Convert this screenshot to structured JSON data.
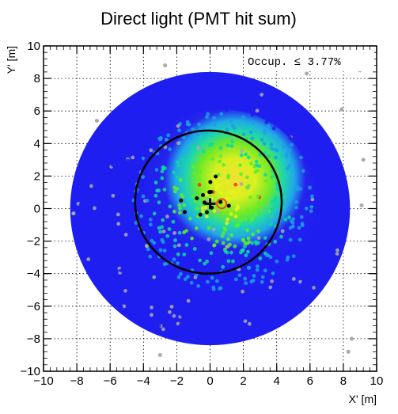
{
  "chart_data": {
    "type": "scatter",
    "title": "Direct light (PMT hit sum)",
    "xlabel": "X' [m]",
    "ylabel": "Y' [m]",
    "xlim": [
      -10,
      10
    ],
    "ylim": [
      -10,
      10
    ],
    "xticks": [
      -10,
      -8,
      -6,
      -4,
      -2,
      0,
      2,
      4,
      6,
      8,
      10
    ],
    "yticks": [
      -10,
      -8,
      -6,
      -4,
      -2,
      0,
      2,
      4,
      6,
      8,
      10
    ],
    "xtick_labels": [
      "−10",
      "−8",
      "−6",
      "−4",
      "−2",
      "0",
      "2",
      "4",
      "6",
      "8",
      "10"
    ],
    "ytick_labels": [
      "−10",
      "−8",
      "−6",
      "−4",
      "−2",
      "0",
      "2",
      "4",
      "6",
      "8",
      "10"
    ],
    "grid": true,
    "annotation": "Occup. ≤ 3.77%",
    "detector_radius": 8.4,
    "ring": {
      "cx": -0.1,
      "cy": 0.4,
      "r": 4.4
    },
    "fit_vertex": {
      "x": 0.0,
      "y": 0.3
    },
    "true_vertex": {
      "x": 0.7,
      "y": 0.3
    },
    "hit_zones": [
      {
        "r": 1.5,
        "level": "high"
      },
      {
        "r": 3.0,
        "level": "mid-high"
      },
      {
        "r": 4.2,
        "level": "mid"
      },
      {
        "r": 5.5,
        "level": "low-mid"
      },
      {
        "r": 8.4,
        "level": "low"
      }
    ],
    "colors": {
      "low": "#1e1ef0",
      "low_mid": "#1aa0e6",
      "mid": "#10d8a0",
      "mid_high": "#5cee2a",
      "high": "#e8f218",
      "hot": "#f03010",
      "max": "#000000",
      "no_hit": "#aaaaaa",
      "ring": "#000000"
    },
    "scattered_no_hit_pmts": [
      {
        "x": 9.0,
        "y": 8.5
      },
      {
        "x": -2.7,
        "y": 8.8
      },
      {
        "x": 8.5,
        "y": -8.0
      },
      {
        "x": -3.8,
        "y": -2.3
      },
      {
        "x": 9.2,
        "y": 3.0
      },
      {
        "x": 9.1,
        "y": 0.2
      },
      {
        "x": -6.8,
        "y": 5.4
      },
      {
        "x": -3.0,
        "y": -9.0
      },
      {
        "x": 5.8,
        "y": 8.3
      },
      {
        "x": 8.3,
        "y": -8.8
      },
      {
        "x": -8.2,
        "y": -0.3
      },
      {
        "x": 7.9,
        "y": 6.1
      }
    ]
  }
}
